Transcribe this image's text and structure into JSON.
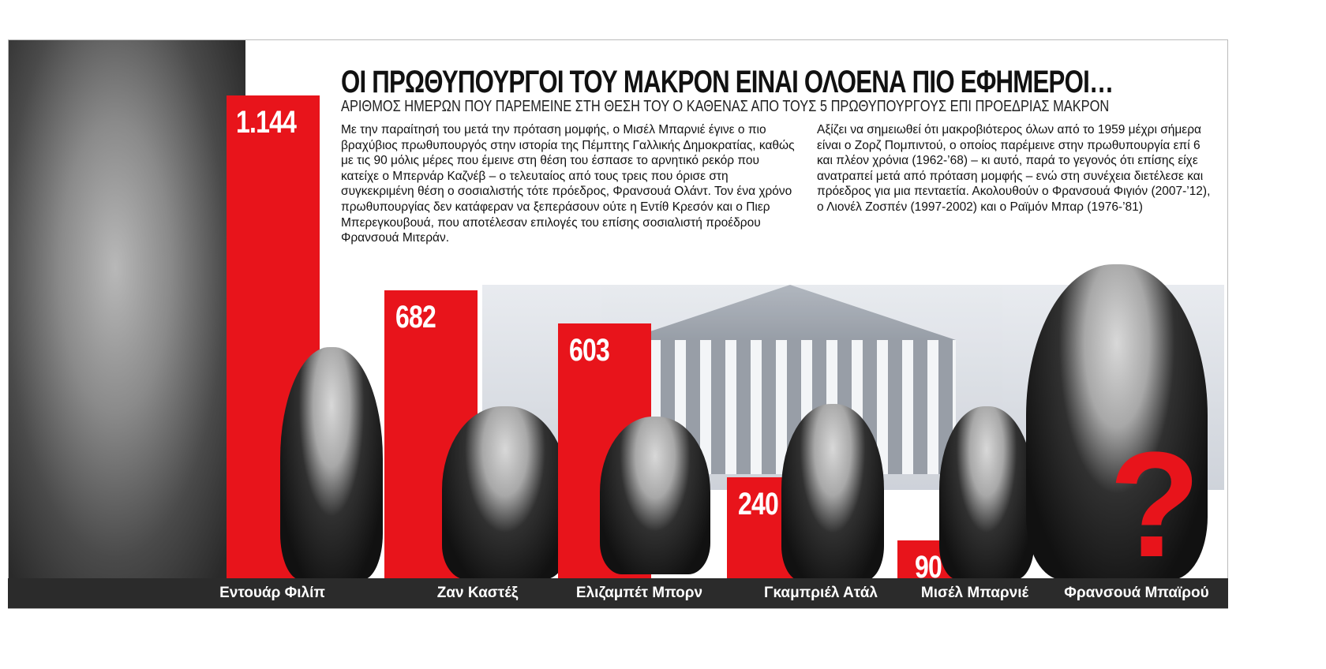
{
  "title": "ΟΙ ΠΡΩΘΥΠΟΥΡΓΟΙ ΤΟΥ ΜΑΚΡΟΝ ΕΙΝΑΙ ΟΛΟΕΝΑ ΠΙΟ ΕΦΗΜΕΡΟΙ…",
  "subtitle": "ΑΡΙΘΜΟΣ ΗΜΕΡΩΝ ΠΟΥ ΠΑΡΕΜΕΙΝΕ ΣΤΗ ΘΕΣΗ ΤΟΥ Ο ΚΑΘΕΝΑΣ  ΑΠΟ ΤΟΥΣ 5 ΠΡΩΘΥΠΟΥΡΓΟΥΣ ΕΠΙ ΠΡΟΕΔΡΙΑΣ ΜΑΚΡΟΝ",
  "paragraph_left": "Με την παραίτησή του μετά την πρόταση μομφής, ο Μισέλ Μπαρνιέ έγινε ο πιο βραχύβιος πρωθυπουργός στην ιστορία της Πέμπτης Γαλλικής Δημοκρατίας, καθώς με τις 90 μόλις μέρες που έμεινε στη θέση του έσπασε το αρνητικό ρεκόρ που κατείχε ο Μπερνάρ Καζνέβ – ο τελευταίος από τους τρεις που όρισε στη συγκεκριμένη θέση ο σοσιαλιστής τότε πρόεδρος, Φρανσουά Ολάντ. Τον ένα χρόνο πρωθυπουργίας δεν κατάφεραν να ξεπεράσουν ούτε η Εντίθ Κρεσόν και ο Πιερ Μπερεγκουβουά, που αποτέλεσαν επιλογές του επίσης σοσιαλιστή προέδρου Φρανσουά Μιτεράν.",
  "paragraph_right": "Αξίζει να σημειωθεί ότι μακροβιότερος όλων από το 1959 μέχρι σήμερα είναι ο Ζορζ Πομπιντού, ο οποίος παρέμεινε στην πρωθυπουργία επί 6 και πλέον χρόνια (1962-’68) – κι αυτό, παρά το γεγονός ότι επίσης είχε ανατραπεί μετά από πρόταση μομφής – ενώ στη συνέχεια διετέλεσε και πρόεδρος για μια πενταετία. Ακολουθούν ο Φρανσουά Φιγιόν (2007-’12), ο Λιονέλ Ζοσπέν (1997-2002) και ο Ραϊμόν Μπαρ (1976-’81)",
  "chart_data": {
    "type": "bar",
    "title": "ΟΙ ΠΡΩΘΥΠΟΥΡΓΟΙ ΤΟΥ ΜΑΚΡΟΝ ΕΙΝΑΙ ΟΛΟΕΝΑ ΠΙΟ ΕΦΗΜΕΡΟΙ…",
    "categories": [
      "Εντουάρ Φιλίπ",
      "Ζαν Καστέξ",
      "Ελιζαμπέτ Μπορν",
      "Γκαμπριέλ Ατάλ",
      "Μισέλ Μπαρνιέ",
      "Φρανσουά Μπαϊρού"
    ],
    "values": [
      1144,
      682,
      603,
      240,
      90,
      null
    ],
    "labels": [
      "1.144",
      "682",
      "603",
      "240",
      "90",
      "?"
    ],
    "bar_color": "#e8141b",
    "ylim": [
      0,
      1144
    ]
  }
}
